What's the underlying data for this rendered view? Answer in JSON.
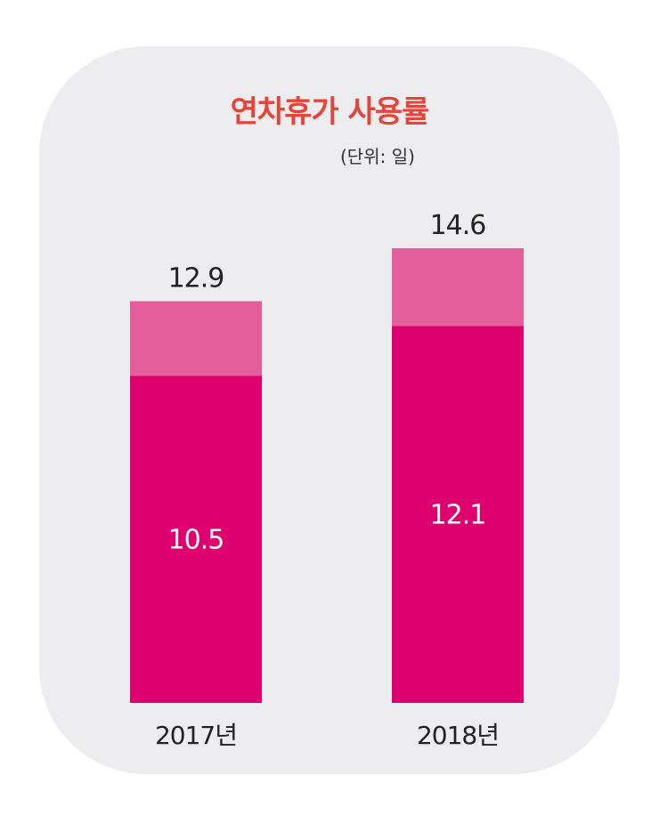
{
  "chart_data": {
    "type": "bar",
    "stacked": true,
    "title": "연차휴가 사용률",
    "unit": "(단위: 일)",
    "categories": [
      "2017년",
      "2018년"
    ],
    "series": [
      {
        "values": [
          10.5,
          12.1
        ],
        "color": "#de006f"
      },
      {
        "values": [
          2.4,
          2.5
        ],
        "color": "#e55e9c"
      }
    ],
    "totals": [
      12.9,
      14.6
    ],
    "ylim": [
      0,
      16
    ],
    "grid": false,
    "legend": "none"
  }
}
